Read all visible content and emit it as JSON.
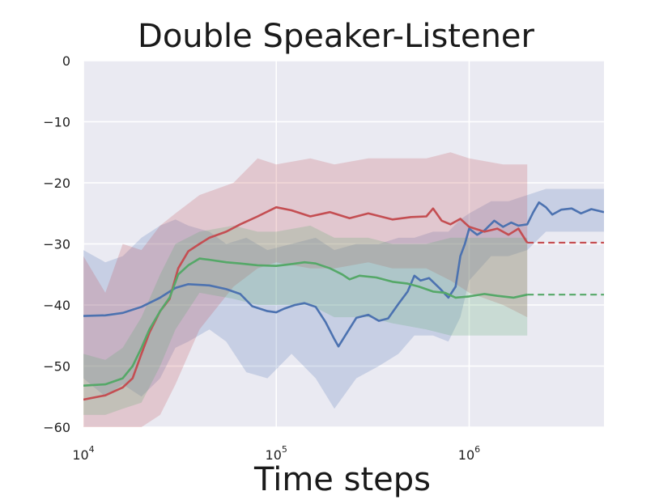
{
  "chart_data": {
    "type": "line",
    "title": "Double Speaker-Listener",
    "xlabel": "Time steps",
    "ylabel": "",
    "x_scale": "log",
    "xlim": [
      10000,
      5000000
    ],
    "ylim": [
      -60,
      0
    ],
    "grid": true,
    "legend": "none",
    "x_ticks": [
      {
        "value": 10000,
        "base": "10",
        "exp": "4"
      },
      {
        "value": 100000,
        "base": "10",
        "exp": "5"
      },
      {
        "value": 1000000,
        "base": "10",
        "exp": "6"
      }
    ],
    "y_ticks": [
      {
        "value": 0,
        "label": "0"
      },
      {
        "value": -10,
        "label": "−10"
      },
      {
        "value": -20,
        "label": "−20"
      },
      {
        "value": -30,
        "label": "−30"
      },
      {
        "value": -40,
        "label": "−40"
      },
      {
        "value": -50,
        "label": "−50"
      },
      {
        "value": -60,
        "label": "−60"
      }
    ],
    "series": [
      {
        "color": "#4c72b0",
        "points": [
          [
            10000,
            -41.8
          ],
          [
            13000,
            -41.7
          ],
          [
            16000,
            -41.3
          ],
          [
            20000,
            -40.3
          ],
          [
            25000,
            -38.8
          ],
          [
            30000,
            -37.2
          ],
          [
            35000,
            -36.6
          ],
          [
            45000,
            -36.8
          ],
          [
            55000,
            -37.4
          ],
          [
            65000,
            -38.2
          ],
          [
            75000,
            -40.2
          ],
          [
            90000,
            -41.0
          ],
          [
            100000,
            -41.2
          ],
          [
            110000,
            -40.6
          ],
          [
            125000,
            -40.0
          ],
          [
            140000,
            -39.7
          ],
          [
            160000,
            -40.3
          ],
          [
            180000,
            -42.8
          ],
          [
            200000,
            -45.6
          ],
          [
            210000,
            -46.8
          ],
          [
            230000,
            -44.8
          ],
          [
            260000,
            -42.1
          ],
          [
            300000,
            -41.6
          ],
          [
            340000,
            -42.6
          ],
          [
            380000,
            -42.2
          ],
          [
            430000,
            -39.8
          ],
          [
            480000,
            -37.8
          ],
          [
            520000,
            -35.2
          ],
          [
            560000,
            -36.0
          ],
          [
            620000,
            -35.6
          ],
          [
            700000,
            -37.2
          ],
          [
            780000,
            -38.8
          ],
          [
            850000,
            -37.0
          ],
          [
            900000,
            -32.0
          ],
          [
            950000,
            -30.0
          ],
          [
            1000000,
            -27.5
          ],
          [
            1100000,
            -28.5
          ],
          [
            1200000,
            -27.8
          ],
          [
            1350000,
            -26.2
          ],
          [
            1500000,
            -27.2
          ],
          [
            1650000,
            -26.5
          ],
          [
            1800000,
            -27.0
          ],
          [
            2000000,
            -26.8
          ],
          [
            2150000,
            -24.8
          ],
          [
            2300000,
            -23.2
          ],
          [
            2500000,
            -24.0
          ],
          [
            2700000,
            -25.2
          ],
          [
            3000000,
            -24.4
          ],
          [
            3400000,
            -24.2
          ],
          [
            3800000,
            -25.0
          ],
          [
            4300000,
            -24.3
          ],
          [
            5000000,
            -24.8
          ]
        ],
        "band": [
          [
            10000,
            -31,
            -52
          ],
          [
            13000,
            -33,
            -55
          ],
          [
            16000,
            -32,
            -53
          ],
          [
            20000,
            -29,
            -55
          ],
          [
            25000,
            -27,
            -52
          ],
          [
            30000,
            -26,
            -47
          ],
          [
            35000,
            -27,
            -46
          ],
          [
            45000,
            -28,
            -44
          ],
          [
            55000,
            -30,
            -46
          ],
          [
            70000,
            -29,
            -51
          ],
          [
            90000,
            -31,
            -52
          ],
          [
            120000,
            -30,
            -48
          ],
          [
            160000,
            -29,
            -52
          ],
          [
            200000,
            -31,
            -57
          ],
          [
            260000,
            -30,
            -52
          ],
          [
            340000,
            -30,
            -50
          ],
          [
            430000,
            -29,
            -48
          ],
          [
            520000,
            -29,
            -45
          ],
          [
            650000,
            -28,
            -45
          ],
          [
            780000,
            -28,
            -46
          ],
          [
            900000,
            -26,
            -42
          ],
          [
            1000000,
            -25,
            -36
          ],
          [
            1300000,
            -23,
            -32
          ],
          [
            1600000,
            -23,
            -32
          ],
          [
            2000000,
            -22,
            -31
          ],
          [
            2500000,
            -21,
            -28
          ],
          [
            3400000,
            -21,
            -28
          ],
          [
            5000000,
            -21,
            -28
          ]
        ]
      },
      {
        "color": "#c44e52",
        "points": [
          [
            10000,
            -55.5
          ],
          [
            13000,
            -54.8
          ],
          [
            16000,
            -53.5
          ],
          [
            18000,
            -52.0
          ],
          [
            20000,
            -48.0
          ],
          [
            22000,
            -44.5
          ],
          [
            25000,
            -41.0
          ],
          [
            28000,
            -39.0
          ],
          [
            31000,
            -34.0
          ],
          [
            35000,
            -31.2
          ],
          [
            40000,
            -30.0
          ],
          [
            45000,
            -29.0
          ],
          [
            55000,
            -28.0
          ],
          [
            65000,
            -26.8
          ],
          [
            80000,
            -25.5
          ],
          [
            100000,
            -24.0
          ],
          [
            120000,
            -24.5
          ],
          [
            150000,
            -25.5
          ],
          [
            190000,
            -24.8
          ],
          [
            240000,
            -25.8
          ],
          [
            300000,
            -25.0
          ],
          [
            400000,
            -26.0
          ],
          [
            500000,
            -25.6
          ],
          [
            600000,
            -25.5
          ],
          [
            650000,
            -24.2
          ],
          [
            720000,
            -26.2
          ],
          [
            800000,
            -26.8
          ],
          [
            900000,
            -25.9
          ],
          [
            1000000,
            -27.2
          ],
          [
            1200000,
            -28.0
          ],
          [
            1400000,
            -27.5
          ],
          [
            1600000,
            -28.5
          ],
          [
            1800000,
            -27.5
          ],
          [
            2000000,
            -29.8
          ]
        ],
        "band": [
          [
            10000,
            -32,
            -65
          ],
          [
            13000,
            -38,
            -65
          ],
          [
            16000,
            -30,
            -65
          ],
          [
            20000,
            -31,
            -60
          ],
          [
            25000,
            -27,
            -58
          ],
          [
            30000,
            -25,
            -53
          ],
          [
            40000,
            -22,
            -44
          ],
          [
            60000,
            -20,
            -37
          ],
          [
            80000,
            -16,
            -34
          ],
          [
            100000,
            -17,
            -33
          ],
          [
            150000,
            -16,
            -34
          ],
          [
            200000,
            -17,
            -34
          ],
          [
            300000,
            -16,
            -33
          ],
          [
            400000,
            -16,
            -34
          ],
          [
            600000,
            -16,
            -34
          ],
          [
            800000,
            -15,
            -36
          ],
          [
            1000000,
            -16,
            -38
          ],
          [
            1500000,
            -17,
            -40
          ],
          [
            2000000,
            -17,
            -42
          ]
        ],
        "extension": {
          "x": [
            2000000,
            5000000
          ],
          "y": -29.8
        }
      },
      {
        "color": "#55a868",
        "points": [
          [
            10000,
            -53.2
          ],
          [
            13000,
            -53.0
          ],
          [
            16000,
            -52.0
          ],
          [
            18000,
            -50.0
          ],
          [
            20000,
            -47.0
          ],
          [
            22000,
            -44.0
          ],
          [
            25000,
            -41.0
          ],
          [
            28000,
            -38.8
          ],
          [
            31000,
            -35.0
          ],
          [
            35000,
            -33.5
          ],
          [
            40000,
            -32.4
          ],
          [
            45000,
            -32.6
          ],
          [
            55000,
            -33.0
          ],
          [
            65000,
            -33.2
          ],
          [
            80000,
            -33.5
          ],
          [
            100000,
            -33.6
          ],
          [
            120000,
            -33.3
          ],
          [
            140000,
            -33.0
          ],
          [
            160000,
            -33.2
          ],
          [
            190000,
            -34.0
          ],
          [
            220000,
            -35.0
          ],
          [
            240000,
            -35.8
          ],
          [
            270000,
            -35.2
          ],
          [
            330000,
            -35.5
          ],
          [
            400000,
            -36.2
          ],
          [
            480000,
            -36.5
          ],
          [
            550000,
            -37.0
          ],
          [
            650000,
            -37.8
          ],
          [
            750000,
            -38.0
          ],
          [
            850000,
            -38.8
          ],
          [
            1000000,
            -38.6
          ],
          [
            1200000,
            -38.2
          ],
          [
            1400000,
            -38.5
          ],
          [
            1700000,
            -38.8
          ],
          [
            2000000,
            -38.3
          ]
        ],
        "band": [
          [
            10000,
            -48,
            -58
          ],
          [
            13000,
            -49,
            -58
          ],
          [
            16000,
            -47,
            -57
          ],
          [
            20000,
            -42,
            -56
          ],
          [
            25000,
            -35,
            -50
          ],
          [
            30000,
            -30,
            -44
          ],
          [
            40000,
            -28,
            -38
          ],
          [
            60000,
            -27,
            -39
          ],
          [
            80000,
            -28,
            -40
          ],
          [
            100000,
            -28,
            -40
          ],
          [
            150000,
            -27,
            -40
          ],
          [
            200000,
            -29,
            -42
          ],
          [
            300000,
            -29,
            -42
          ],
          [
            400000,
            -30,
            -43
          ],
          [
            600000,
            -30,
            -44
          ],
          [
            800000,
            -29,
            -45
          ],
          [
            1000000,
            -29,
            -45
          ],
          [
            1500000,
            -29,
            -45
          ],
          [
            2000000,
            -29,
            -45
          ]
        ],
        "extension": {
          "x": [
            2000000,
            5000000
          ],
          "y": -38.3
        }
      }
    ]
  }
}
